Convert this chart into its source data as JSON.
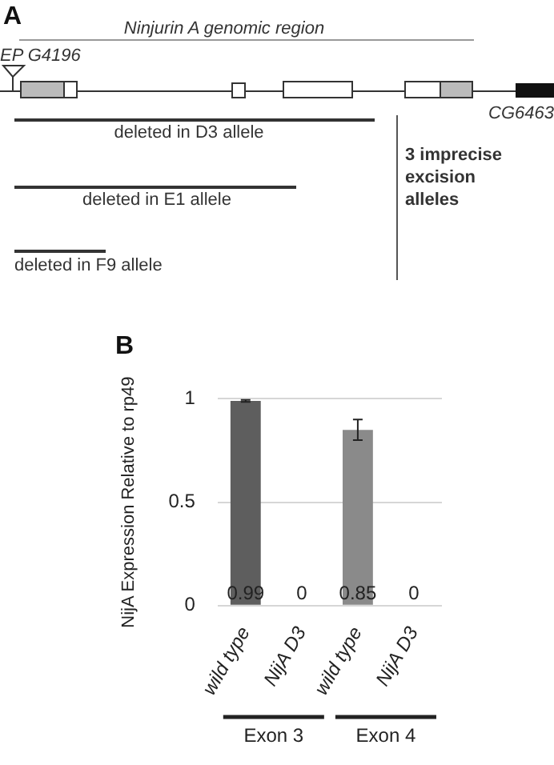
{
  "chart_data": {
    "type": "bar",
    "ylabel": "NijA Expression Relative to rp49",
    "categories": [
      "wild type",
      "NijA D3",
      "wild type",
      "NijA D3"
    ],
    "values": [
      0.99,
      0,
      0.85,
      0
    ],
    "colors": [
      "#5e5e5e",
      "#5e5e5e",
      "#8a8a8a",
      "#8a8a8a"
    ],
    "errors": [
      0.005,
      null,
      0.05,
      null
    ],
    "data_labels": true,
    "ylim": [
      0,
      1
    ],
    "yticks": [
      0,
      0.5,
      1
    ],
    "grid": "y",
    "legend": false,
    "annotations": [
      "A",
      "Ninjurin A genomic region",
      "EP G4196",
      "CG6463",
      "deleted in D3 allele",
      "deleted in E1 allele",
      "deleted in F9 allele",
      "3 imprecise excision alleles",
      "B",
      "Exon 3",
      "Exon 4"
    ]
  }
}
